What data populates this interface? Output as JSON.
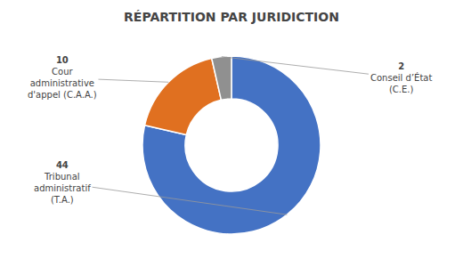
{
  "chart_data": {
    "type": "pie",
    "title": "RÉPARTITION PAR JURIDICTION",
    "categories": [
      "Tribunal\nadministratif\n(T.A.)",
      "Cour\nadministrative\nd'appel (C.A.A.)",
      "Conseil d’État\n(C.E.)"
    ],
    "values": [
      44,
      10,
      2
    ],
    "colors": [
      "#4472C4",
      "#E07020",
      "#909090"
    ],
    "data_labels": true
  }
}
